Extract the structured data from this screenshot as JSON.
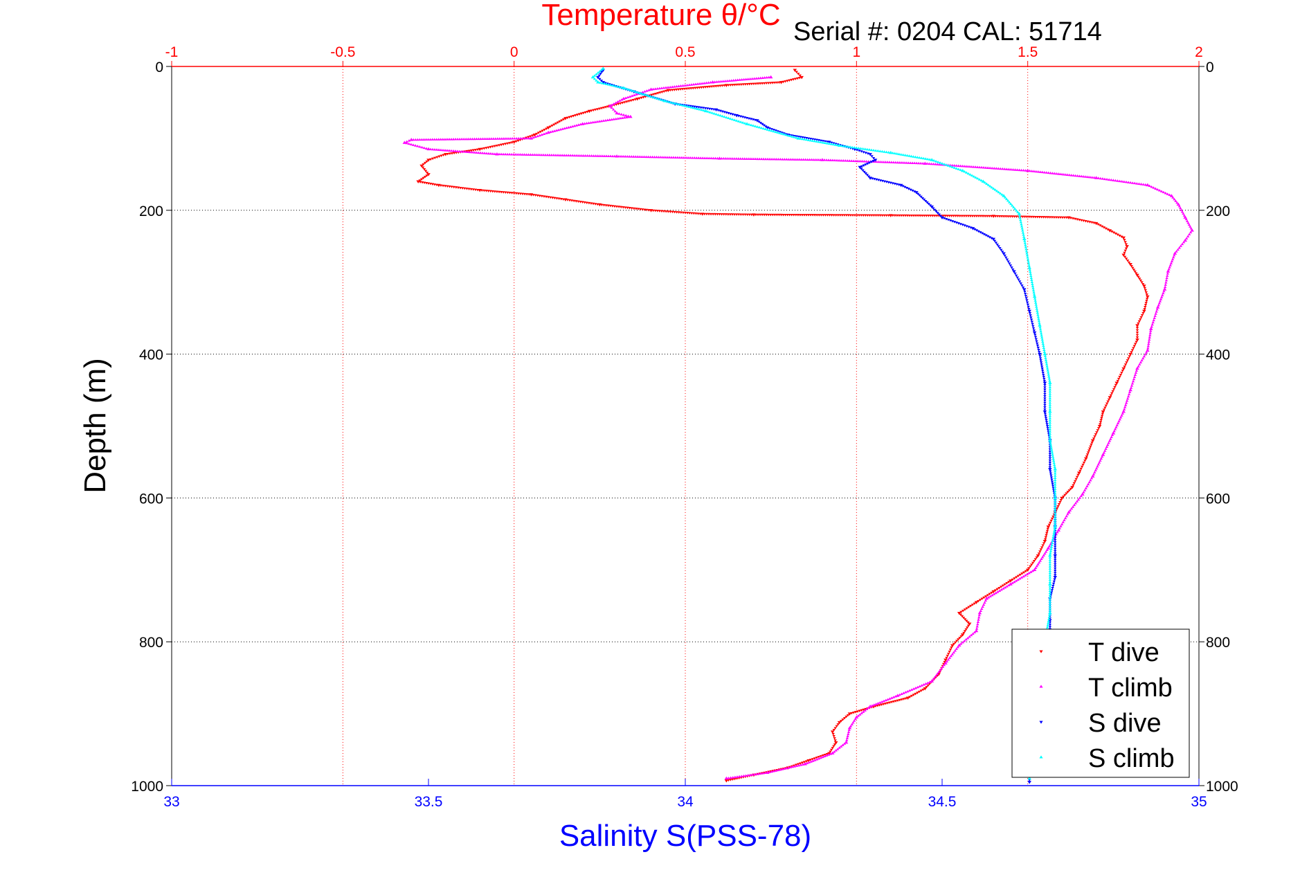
{
  "chart_data": {
    "type": "scatter",
    "title": "Temperature θ/°C",
    "annotation": "Serial #: 0204  CAL: 51714",
    "xlabel_bottom": "Salinity S(PSS-78)",
    "xlabel_top": "Temperature θ/°C",
    "ylabel": "Depth (m)",
    "ylim": [
      0,
      1000
    ],
    "y_reversed": true,
    "xlim_bottom": [
      33,
      35
    ],
    "xlim_top": [
      -1,
      2
    ],
    "yticks": [
      "0",
      "200",
      "400",
      "600",
      "800",
      "1000"
    ],
    "yticks_right": [
      "0",
      "200",
      "400",
      "600",
      "800",
      "1000"
    ],
    "xticks_top": [
      "-1",
      "-0.5",
      "0",
      "0.5",
      "1",
      "1.5",
      "2"
    ],
    "xticks_bottom": [
      "33",
      "33.5",
      "34",
      "34.5",
      "35"
    ],
    "grid": true,
    "legend_position": "bottom-right",
    "colors": {
      "temperature_axis": "#ff0000",
      "salinity_axis": "#0000ff",
      "grid_temperature": "#ff0000",
      "grid_depth": "#000000"
    },
    "series": [
      {
        "name": "T dive",
        "axis": "temperature",
        "color": "#ff0000",
        "marker": "triangle-down",
        "points": [
          [
            0.82,
            5
          ],
          [
            0.84,
            15
          ],
          [
            0.78,
            22
          ],
          [
            0.62,
            26
          ],
          [
            0.45,
            33
          ],
          [
            0.36,
            45
          ],
          [
            0.28,
            55
          ],
          [
            0.22,
            62
          ],
          [
            0.15,
            72
          ],
          [
            0.1,
            85
          ],
          [
            0.06,
            95
          ],
          [
            0.0,
            105
          ],
          [
            -0.1,
            115
          ],
          [
            -0.2,
            122
          ],
          [
            -0.25,
            130
          ],
          [
            -0.27,
            138
          ],
          [
            -0.25,
            150
          ],
          [
            -0.28,
            160
          ],
          [
            -0.22,
            165
          ],
          [
            -0.1,
            172
          ],
          [
            0.05,
            178
          ],
          [
            0.15,
            185
          ],
          [
            0.25,
            192
          ],
          [
            0.4,
            200
          ],
          [
            0.55,
            205
          ],
          [
            0.7,
            206
          ],
          [
            1.1,
            207
          ],
          [
            1.4,
            208
          ],
          [
            1.62,
            210
          ],
          [
            1.7,
            218
          ],
          [
            1.74,
            228
          ],
          [
            1.78,
            238
          ],
          [
            1.79,
            250
          ],
          [
            1.78,
            262
          ],
          [
            1.8,
            275
          ],
          [
            1.82,
            290
          ],
          [
            1.84,
            305
          ],
          [
            1.85,
            320
          ],
          [
            1.84,
            340
          ],
          [
            1.82,
            360
          ],
          [
            1.82,
            380
          ],
          [
            1.8,
            400
          ],
          [
            1.78,
            420
          ],
          [
            1.76,
            440
          ],
          [
            1.74,
            460
          ],
          [
            1.72,
            480
          ],
          [
            1.71,
            500
          ],
          [
            1.69,
            520
          ],
          [
            1.67,
            545
          ],
          [
            1.65,
            565
          ],
          [
            1.63,
            585
          ],
          [
            1.6,
            600
          ],
          [
            1.58,
            620
          ],
          [
            1.56,
            640
          ],
          [
            1.55,
            660
          ],
          [
            1.53,
            680
          ],
          [
            1.5,
            700
          ],
          [
            1.45,
            715
          ],
          [
            1.4,
            730
          ],
          [
            1.35,
            745
          ],
          [
            1.3,
            760
          ],
          [
            1.33,
            775
          ],
          [
            1.31,
            790
          ],
          [
            1.28,
            805
          ],
          [
            1.26,
            825
          ],
          [
            1.24,
            845
          ],
          [
            1.2,
            865
          ],
          [
            1.15,
            878
          ],
          [
            1.05,
            890
          ],
          [
            0.98,
            900
          ],
          [
            0.95,
            912
          ],
          [
            0.93,
            925
          ],
          [
            0.94,
            940
          ],
          [
            0.92,
            955
          ],
          [
            0.86,
            965
          ],
          [
            0.8,
            975
          ],
          [
            0.7,
            985
          ],
          [
            0.62,
            993
          ]
        ]
      },
      {
        "name": "T climb",
        "axis": "temperature",
        "color": "#ff00ff",
        "marker": "triangle-up",
        "points": [
          [
            0.75,
            15
          ],
          [
            0.58,
            22
          ],
          [
            0.4,
            32
          ],
          [
            0.32,
            45
          ],
          [
            0.28,
            55
          ],
          [
            0.3,
            65
          ],
          [
            0.34,
            70
          ],
          [
            0.2,
            80
          ],
          [
            0.1,
            92
          ],
          [
            0.05,
            100
          ],
          [
            -0.3,
            102
          ],
          [
            -0.32,
            106
          ],
          [
            -0.25,
            115
          ],
          [
            -0.05,
            122
          ],
          [
            0.3,
            125
          ],
          [
            0.6,
            128
          ],
          [
            0.9,
            130
          ],
          [
            1.2,
            135
          ],
          [
            1.5,
            145
          ],
          [
            1.7,
            155
          ],
          [
            1.85,
            165
          ],
          [
            1.92,
            180
          ],
          [
            1.94,
            192
          ],
          [
            1.96,
            210
          ],
          [
            1.98,
            228
          ],
          [
            1.96,
            242
          ],
          [
            1.93,
            260
          ],
          [
            1.91,
            285
          ],
          [
            1.9,
            310
          ],
          [
            1.88,
            335
          ],
          [
            1.86,
            365
          ],
          [
            1.85,
            395
          ],
          [
            1.82,
            420
          ],
          [
            1.8,
            450
          ],
          [
            1.78,
            480
          ],
          [
            1.75,
            510
          ],
          [
            1.72,
            540
          ],
          [
            1.69,
            570
          ],
          [
            1.66,
            595
          ],
          [
            1.62,
            620
          ],
          [
            1.59,
            645
          ],
          [
            1.56,
            670
          ],
          [
            1.52,
            700
          ],
          [
            1.45,
            720
          ],
          [
            1.38,
            740
          ],
          [
            1.36,
            760
          ],
          [
            1.35,
            785
          ],
          [
            1.3,
            805
          ],
          [
            1.26,
            830
          ],
          [
            1.22,
            855
          ],
          [
            1.12,
            875
          ],
          [
            1.04,
            890
          ],
          [
            1.0,
            905
          ],
          [
            0.98,
            920
          ],
          [
            0.97,
            940
          ],
          [
            0.93,
            955
          ],
          [
            0.85,
            970
          ],
          [
            0.74,
            982
          ],
          [
            0.62,
            990
          ]
        ]
      },
      {
        "name": "S dive",
        "axis": "salinity",
        "color": "#0000ff",
        "marker": "triangle-down",
        "points": [
          [
            33.84,
            5
          ],
          [
            33.83,
            15
          ],
          [
            33.84,
            22
          ],
          [
            33.9,
            35
          ],
          [
            33.98,
            52
          ],
          [
            34.06,
            60
          ],
          [
            34.1,
            68
          ],
          [
            34.14,
            75
          ],
          [
            34.16,
            85
          ],
          [
            34.2,
            95
          ],
          [
            34.28,
            105
          ],
          [
            34.33,
            115
          ],
          [
            34.36,
            122
          ],
          [
            34.37,
            130
          ],
          [
            34.34,
            140
          ],
          [
            34.36,
            155
          ],
          [
            34.42,
            165
          ],
          [
            34.45,
            175
          ],
          [
            34.48,
            195
          ],
          [
            34.5,
            210
          ],
          [
            34.56,
            225
          ],
          [
            34.6,
            240
          ],
          [
            34.62,
            260
          ],
          [
            34.64,
            285
          ],
          [
            34.66,
            310
          ],
          [
            34.67,
            340
          ],
          [
            34.68,
            370
          ],
          [
            34.69,
            400
          ],
          [
            34.7,
            440
          ],
          [
            34.7,
            480
          ],
          [
            34.71,
            520
          ],
          [
            34.71,
            560
          ],
          [
            34.72,
            600
          ],
          [
            34.72,
            640
          ],
          [
            34.72,
            680
          ],
          [
            34.72,
            710
          ],
          [
            34.71,
            740
          ],
          [
            34.71,
            770
          ],
          [
            34.71,
            810
          ],
          [
            34.7,
            850
          ],
          [
            34.69,
            890
          ],
          [
            34.68,
            930
          ],
          [
            34.67,
            970
          ],
          [
            34.67,
            995
          ]
        ]
      },
      {
        "name": "S climb",
        "axis": "salinity",
        "color": "#00ffff",
        "marker": "triangle-up",
        "points": [
          [
            33.84,
            3
          ],
          [
            33.82,
            15
          ],
          [
            33.83,
            22
          ],
          [
            33.88,
            30
          ],
          [
            33.96,
            48
          ],
          [
            34.04,
            62
          ],
          [
            34.12,
            80
          ],
          [
            34.22,
            100
          ],
          [
            34.3,
            110
          ],
          [
            34.4,
            120
          ],
          [
            34.48,
            130
          ],
          [
            34.54,
            145
          ],
          [
            34.58,
            160
          ],
          [
            34.62,
            180
          ],
          [
            34.65,
            205
          ],
          [
            34.66,
            240
          ],
          [
            34.67,
            280
          ],
          [
            34.68,
            320
          ],
          [
            34.69,
            360
          ],
          [
            34.7,
            400
          ],
          [
            34.71,
            440
          ],
          [
            34.71,
            480
          ],
          [
            34.71,
            520
          ],
          [
            34.72,
            560
          ],
          [
            34.72,
            600
          ],
          [
            34.72,
            640
          ],
          [
            34.71,
            680
          ],
          [
            34.71,
            720
          ],
          [
            34.71,
            760
          ],
          [
            34.7,
            800
          ],
          [
            34.69,
            850
          ],
          [
            34.68,
            900
          ],
          [
            34.67,
            950
          ],
          [
            34.67,
            990
          ]
        ]
      }
    ],
    "legend": [
      "T dive",
      "T climb",
      "S dive",
      "S climb"
    ]
  }
}
